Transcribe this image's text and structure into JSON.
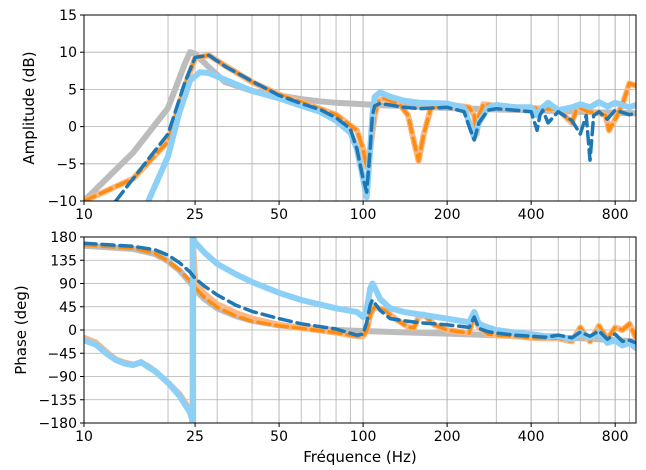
{
  "chart_data": [
    {
      "type": "line",
      "xlabel": "",
      "ylabel": "Amplitude (dB)",
      "xscale": "log",
      "xlim": [
        10,
        950
      ],
      "ylim": [
        -10,
        15
      ],
      "xticks": [
        10,
        25,
        50,
        100,
        200,
        400,
        800
      ],
      "xtick_labels": [
        "10",
        "25",
        "50",
        "100",
        "200",
        "400",
        "800"
      ],
      "yticks": [
        -10,
        -5,
        0,
        5,
        10,
        15
      ],
      "ytick_labels": [
        "−10",
        "−5",
        "0",
        "5",
        "10",
        "15"
      ],
      "grid": true,
      "series": [
        {
          "color": "#bcbcbc",
          "dashed": false,
          "width": 6,
          "x": [
            10,
            15,
            20,
            23,
            24,
            25,
            28,
            32,
            40,
            50,
            60,
            70,
            80,
            90,
            100,
            110,
            130,
            150,
            200,
            250,
            300,
            400,
            500,
            600,
            700,
            800,
            900,
            950
          ],
          "y": [
            -10,
            -3.5,
            2.5,
            8.5,
            10,
            9.8,
            8,
            6,
            4.8,
            4.2,
            3.7,
            3.4,
            3.2,
            3.1,
            3.0,
            2.9,
            2.8,
            2.7,
            2.5,
            2.4,
            2.3,
            2.2,
            2.1,
            2.0,
            1.9,
            1.9,
            1.8,
            1.8
          ]
        },
        {
          "color": "#fbb885",
          "dashed": false,
          "width": 6,
          "x": [
            10,
            15,
            20,
            23,
            25,
            28,
            32,
            40,
            50,
            60,
            80,
            95,
            100,
            103,
            106,
            110,
            113,
            118,
            125,
            135,
            145,
            152,
            158,
            165,
            175,
            200,
            240,
            250,
            255,
            260,
            270,
            300,
            350,
            400,
            500,
            560,
            580,
            600,
            640,
            700,
            740,
            760,
            800,
            850,
            900,
            950
          ],
          "y": [
            -10,
            -7,
            -2,
            5.5,
            9.2,
            9.6,
            8.2,
            6,
            4.3,
            3.3,
            1.6,
            -0.5,
            -3,
            -5.5,
            -3,
            1.5,
            3.3,
            3.8,
            3.5,
            3.0,
            1.5,
            -2,
            -4.6,
            -1,
            2.5,
            3.0,
            2.6,
            1.5,
            -1,
            1.5,
            3.0,
            2.8,
            2.6,
            2.5,
            2.3,
            0.5,
            2.2,
            2.5,
            2.0,
            1.8,
            1.5,
            -0.5,
            1.0,
            3.0,
            5.8,
            5.5
          ]
        },
        {
          "color": "#ff8c0f",
          "dashed": true,
          "width": 3.5,
          "x": [
            10,
            15,
            20,
            23,
            25,
            28,
            32,
            40,
            50,
            60,
            80,
            95,
            100,
            103,
            106,
            110,
            113,
            118,
            125,
            135,
            145,
            152,
            158,
            165,
            175,
            200,
            240,
            250,
            255,
            260,
            270,
            300,
            350,
            400,
            500,
            560,
            580,
            600,
            640,
            700,
            740,
            760,
            800,
            850,
            900,
            950
          ],
          "y": [
            -10,
            -7,
            -2,
            5.5,
            9.2,
            9.6,
            8.2,
            6,
            4.3,
            3.3,
            1.6,
            -0.5,
            -3,
            -5.5,
            -3,
            1.5,
            3.3,
            3.8,
            3.5,
            3.0,
            1.5,
            -2,
            -4.6,
            -1,
            2.5,
            3.0,
            2.6,
            1.5,
            -1,
            1.5,
            3.0,
            2.8,
            2.6,
            2.5,
            2.3,
            0.5,
            2.2,
            2.5,
            2.0,
            1.8,
            1.5,
            -0.5,
            1.0,
            3.0,
            5.8,
            5.5
          ]
        },
        {
          "color": "#8dd0f7",
          "dashed": false,
          "width": 6,
          "x": [
            17,
            20,
            22,
            24,
            26,
            28,
            32,
            40,
            50,
            60,
            70,
            80,
            90,
            95,
            100,
            103,
            106,
            108,
            110,
            115,
            125,
            140,
            160,
            200,
            230,
            240,
            250,
            260,
            280,
            300,
            350,
            400,
            420,
            440,
            460,
            500,
            560,
            600,
            650,
            700,
            750,
            800,
            900,
            950
          ],
          "y": [
            -10,
            -4,
            2,
            6.2,
            7.3,
            7.2,
            6.3,
            4.8,
            3.8,
            2.8,
            2.0,
            0.8,
            -0.8,
            -3,
            -7,
            -9.5,
            -3,
            1.5,
            4.0,
            4.6,
            4.0,
            3.5,
            3.2,
            3.1,
            2.5,
            0.5,
            -1.5,
            0.5,
            2.5,
            2.9,
            2.6,
            2.6,
            1.5,
            2.6,
            3.2,
            2.2,
            2.6,
            3.0,
            2.6,
            3.3,
            2.7,
            3.2,
            2.6,
            2.9
          ]
        },
        {
          "color": "#1f77b4",
          "dashed": true,
          "width": 3.5,
          "x": [
            13,
            15,
            20,
            23,
            25,
            28,
            32,
            40,
            50,
            60,
            70,
            80,
            90,
            95,
            100,
            103,
            106,
            108,
            110,
            115,
            125,
            140,
            160,
            200,
            230,
            240,
            250,
            260,
            280,
            300,
            350,
            400,
            420,
            430,
            440,
            460,
            500,
            560,
            600,
            630,
            650,
            670,
            700,
            750,
            800,
            900,
            950
          ],
          "y": [
            -10,
            -7,
            -1,
            6,
            9.3,
            9.6,
            8.1,
            6.1,
            4.2,
            3.1,
            2.3,
            1.2,
            -0.3,
            -3,
            -7,
            -8.8,
            -3,
            1.5,
            2.8,
            3.1,
            2.9,
            2.6,
            2.4,
            2.6,
            2.0,
            0,
            -1.8,
            0.5,
            2.2,
            2.4,
            2.2,
            2.0,
            -0.5,
            1.5,
            2.2,
            0.5,
            2.0,
            0.8,
            -1,
            1.5,
            -4.5,
            1.5,
            2.0,
            1.0,
            2.2,
            1.6,
            1.8
          ]
        }
      ]
    },
    {
      "type": "line",
      "xlabel": "Fréquence (Hz)",
      "ylabel": "Phase (deg)",
      "xscale": "log",
      "xlim": [
        10,
        950
      ],
      "ylim": [
        -180,
        180
      ],
      "xticks": [
        10,
        25,
        50,
        100,
        200,
        400,
        800
      ],
      "xtick_labels": [
        "10",
        "25",
        "50",
        "100",
        "200",
        "400",
        "800"
      ],
      "yticks": [
        -180,
        -135,
        -90,
        -45,
        0,
        45,
        90,
        135,
        180
      ],
      "ytick_labels": [
        "−180",
        "−135",
        "−90",
        "−45",
        "0",
        "45",
        "90",
        "135",
        "180"
      ],
      "grid": true,
      "series": [
        {
          "color": "#bcbcbc",
          "dashed": false,
          "width": 6,
          "x": [
            10,
            15,
            18,
            20,
            22,
            24,
            25,
            27,
            30,
            35,
            40,
            50,
            60,
            80,
            100,
            150,
            200,
            300,
            400,
            500,
            600,
            700,
            800,
            950
          ],
          "y": [
            163,
            157,
            147,
            133,
            115,
            92,
            78,
            60,
            42,
            27,
            18,
            9,
            5,
            0,
            -2,
            -5,
            -7,
            -10,
            -13,
            -15,
            -16,
            -18,
            -20,
            -22
          ]
        },
        {
          "color": "#fbb885",
          "dashed": false,
          "width": 6,
          "x": [
            10,
            11,
            12,
            13,
            14,
            15,
            16,
            17,
            18,
            20,
            22,
            24,
            24.5,
            24.5,
            25,
            27,
            30,
            35,
            40,
            50,
            60,
            80,
            95,
            100,
            103,
            106,
            110,
            120,
            130,
            145,
            152,
            158,
            165,
            180,
            200,
            240,
            250,
            260,
            280,
            300,
            350,
            400,
            450,
            500,
            560,
            600,
            650,
            700,
            750,
            800,
            850,
            900,
            950
          ],
          "y": [
            -15,
            -24,
            -42,
            -57,
            -63,
            -67,
            -63,
            -70,
            -80,
            -102,
            -124,
            -155,
            -180,
            180,
            95,
            70,
            50,
            33,
            22,
            10,
            4,
            -5,
            -12,
            -12,
            -2,
            30,
            45,
            38,
            22,
            6,
            4,
            25,
            30,
            10,
            0,
            -6,
            30,
            5,
            -8,
            -10,
            -12,
            -15,
            -16,
            -16,
            -22,
            5,
            -22,
            8,
            -18,
            5,
            0,
            12,
            -15
          ]
        },
        {
          "color": "#ff8c0f",
          "dashed": true,
          "width": 3.5,
          "x": [
            10,
            15,
            18,
            20,
            22,
            24,
            25,
            27,
            30,
            35,
            40,
            50,
            60,
            80,
            95,
            100,
            103,
            106,
            110,
            120,
            130,
            145,
            152,
            158,
            165,
            180,
            200,
            240,
            250,
            260,
            280,
            300,
            350,
            400,
            450,
            500,
            560,
            600,
            650,
            700,
            750,
            800,
            850,
            900,
            950
          ],
          "y": [
            165,
            158,
            148,
            133,
            116,
            95,
            82,
            63,
            44,
            27,
            17,
            8,
            3,
            -5,
            -12,
            -12,
            -2,
            30,
            45,
            38,
            22,
            6,
            4,
            25,
            30,
            10,
            0,
            -6,
            30,
            5,
            -8,
            -10,
            -12,
            -15,
            -16,
            -16,
            -22,
            5,
            -22,
            8,
            -18,
            5,
            0,
            12,
            -15
          ]
        },
        {
          "color": "#8dd0f7",
          "dashed": false,
          "width": 6,
          "x": [
            10,
            11,
            12,
            13,
            14,
            15,
            16,
            17,
            18,
            20,
            22,
            24,
            24.6,
            24.6,
            25,
            27,
            30,
            35,
            40,
            50,
            60,
            80,
            95,
            100,
            103,
            106,
            108,
            110,
            115,
            125,
            140,
            160,
            200,
            240,
            250,
            260,
            280,
            300,
            350,
            400,
            450,
            500,
            560,
            600,
            650,
            700,
            750,
            800,
            850,
            900,
            950
          ],
          "y": [
            -20,
            -28,
            -45,
            -58,
            -65,
            -68,
            -62,
            -72,
            -80,
            -102,
            -128,
            -160,
            -178,
            178,
            170,
            150,
            128,
            108,
            93,
            72,
            58,
            42,
            35,
            25,
            40,
            80,
            90,
            82,
            60,
            42,
            35,
            30,
            22,
            15,
            35,
            12,
            5,
            0,
            -5,
            -8,
            -12,
            -12,
            -18,
            -5,
            -15,
            -5,
            -25,
            -20,
            -30,
            -25,
            -35
          ]
        },
        {
          "color": "#1f77b4",
          "dashed": true,
          "width": 3.5,
          "x": [
            10,
            15,
            18,
            20,
            22,
            24,
            25,
            27,
            30,
            35,
            40,
            50,
            60,
            80,
            95,
            100,
            103,
            106,
            108,
            110,
            115,
            125,
            140,
            160,
            200,
            240,
            250,
            260,
            280,
            300,
            350,
            400,
            450,
            500,
            560,
            600,
            650,
            700,
            750,
            800,
            850,
            900,
            950
          ],
          "y": [
            168,
            162,
            155,
            145,
            130,
            112,
            100,
            85,
            68,
            48,
            36,
            22,
            12,
            2,
            -10,
            -8,
            15,
            48,
            58,
            52,
            38,
            22,
            18,
            14,
            10,
            5,
            25,
            3,
            -3,
            -6,
            -10,
            -12,
            -14,
            -10,
            -15,
            -4,
            -12,
            -2,
            -18,
            -8,
            -22,
            -20,
            -25
          ]
        }
      ]
    }
  ]
}
